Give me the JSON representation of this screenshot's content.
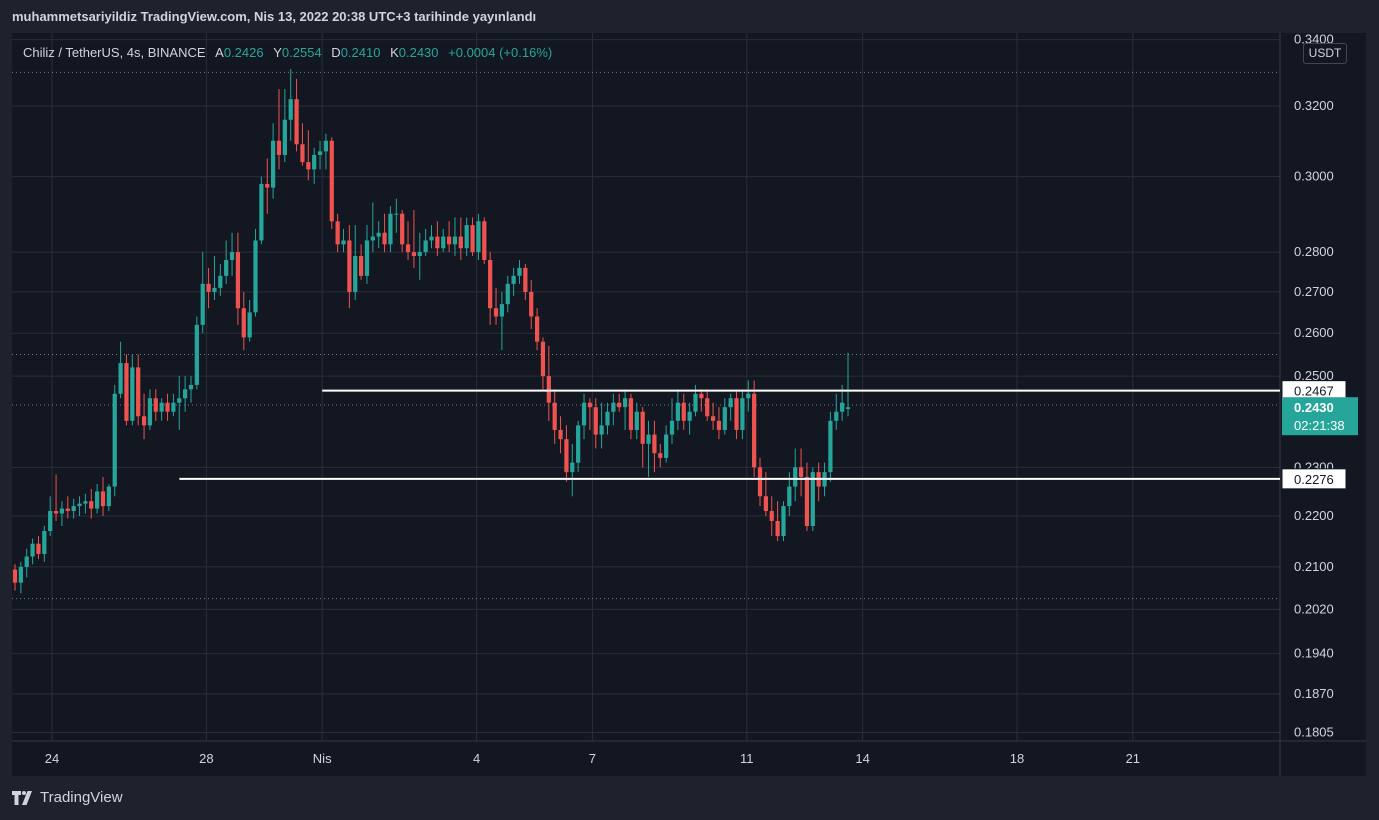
{
  "caption": "muhammetsariyildiz TradingView.com, Nis 13, 2022 20:38 UTC+3 tarihinde yayınlandı",
  "legend": {
    "symbol": "Chiliz / TetherUS, 4s, BINANCE",
    "open_label": "A",
    "open": "0.2426",
    "high_label": "Y",
    "high": "0.2554",
    "low_label": "D",
    "low": "0.2410",
    "close_label": "K",
    "close": "0.2430",
    "change": "+0.0004 (+0.16%)"
  },
  "unit": "USDT",
  "footer": {
    "brand": "TradingView",
    "logo_icon": "tradingview-logo-icon"
  },
  "colors": {
    "up": "#26a69a",
    "down": "#ef5350",
    "background": "#131722",
    "grid": "#2a2e39",
    "text": "#d1d4dc"
  },
  "chart_data": {
    "type": "candlestick",
    "scale": "log",
    "y_ticks": [
      "0.3400",
      "0.3200",
      "0.3000",
      "0.2800",
      "0.2700",
      "0.2600",
      "0.2500",
      "0.2300",
      "0.2200",
      "0.2100",
      "0.2020",
      "0.1940",
      "0.1870",
      "0.1805"
    ],
    "x_ticks": [
      {
        "label": "24",
        "day": 24
      },
      {
        "label": "28",
        "day": 28
      },
      {
        "label": "Nis",
        "day": 31
      },
      {
        "label": "4",
        "day": 35
      },
      {
        "label": "7",
        "day": 38
      },
      {
        "label": "11",
        "day": 42
      },
      {
        "label": "14",
        "day": 45
      },
      {
        "label": "18",
        "day": 49
      },
      {
        "label": "21",
        "day": 52
      }
    ],
    "horizontal_levels": [
      {
        "value": 0.2467,
        "label": "0.2467",
        "from_day": 31.0
      },
      {
        "value": 0.2276,
        "label": "0.2276",
        "from_day": 27.3
      }
    ],
    "dotted_levels": [
      0.33,
      0.255,
      0.2435,
      0.204
    ],
    "last_price": {
      "value": 0.243,
      "label": "0.2430",
      "countdown": "02:21:38"
    },
    "candles": [
      [
        0.2095,
        0.2105,
        0.2055,
        0.207
      ],
      [
        0.207,
        0.211,
        0.205,
        0.21
      ],
      [
        0.21,
        0.2135,
        0.208,
        0.212
      ],
      [
        0.212,
        0.2155,
        0.2105,
        0.2145
      ],
      [
        0.2145,
        0.216,
        0.2115,
        0.2125
      ],
      [
        0.2125,
        0.218,
        0.211,
        0.217
      ],
      [
        0.217,
        0.224,
        0.216,
        0.221
      ],
      [
        0.221,
        0.2285,
        0.219,
        0.2205
      ],
      [
        0.2205,
        0.223,
        0.218,
        0.2215
      ],
      [
        0.2215,
        0.224,
        0.2195,
        0.221
      ],
      [
        0.221,
        0.2235,
        0.2195,
        0.222
      ],
      [
        0.222,
        0.224,
        0.22,
        0.2225
      ],
      [
        0.2225,
        0.2245,
        0.2205,
        0.223
      ],
      [
        0.223,
        0.2255,
        0.2195,
        0.2215
      ],
      [
        0.2215,
        0.2265,
        0.2205,
        0.225
      ],
      [
        0.225,
        0.228,
        0.22,
        0.222
      ],
      [
        0.222,
        0.2265,
        0.221,
        0.226
      ],
      [
        0.226,
        0.248,
        0.224,
        0.246
      ],
      [
        0.246,
        0.258,
        0.245,
        0.253
      ],
      [
        0.253,
        0.255,
        0.239,
        0.24
      ],
      [
        0.24,
        0.255,
        0.239,
        0.252
      ],
      [
        0.252,
        0.255,
        0.239,
        0.241
      ],
      [
        0.241,
        0.246,
        0.236,
        0.239
      ],
      [
        0.239,
        0.247,
        0.238,
        0.245
      ],
      [
        0.245,
        0.247,
        0.24,
        0.242
      ],
      [
        0.242,
        0.245,
        0.24,
        0.244
      ],
      [
        0.244,
        0.246,
        0.24,
        0.242
      ],
      [
        0.242,
        0.246,
        0.241,
        0.244
      ],
      [
        0.244,
        0.25,
        0.238,
        0.245
      ],
      [
        0.245,
        0.25,
        0.242,
        0.247
      ],
      [
        0.247,
        0.25,
        0.244,
        0.248
      ],
      [
        0.248,
        0.264,
        0.247,
        0.262
      ],
      [
        0.262,
        0.28,
        0.26,
        0.272
      ],
      [
        0.272,
        0.276,
        0.266,
        0.27
      ],
      [
        0.27,
        0.279,
        0.268,
        0.271
      ],
      [
        0.271,
        0.277,
        0.269,
        0.274
      ],
      [
        0.274,
        0.283,
        0.272,
        0.278
      ],
      [
        0.278,
        0.285,
        0.274,
        0.28
      ],
      [
        0.28,
        0.285,
        0.262,
        0.266
      ],
      [
        0.266,
        0.27,
        0.256,
        0.259
      ],
      [
        0.259,
        0.268,
        0.258,
        0.265
      ],
      [
        0.265,
        0.286,
        0.264,
        0.283
      ],
      [
        0.283,
        0.3,
        0.282,
        0.298
      ],
      [
        0.298,
        0.305,
        0.29,
        0.297
      ],
      [
        0.297,
        0.315,
        0.294,
        0.31
      ],
      [
        0.31,
        0.325,
        0.302,
        0.306
      ],
      [
        0.306,
        0.325,
        0.304,
        0.316
      ],
      [
        0.316,
        0.331,
        0.31,
        0.322
      ],
      [
        0.322,
        0.328,
        0.307,
        0.309
      ],
      [
        0.309,
        0.315,
        0.303,
        0.304
      ],
      [
        0.304,
        0.313,
        0.299,
        0.302
      ],
      [
        0.302,
        0.308,
        0.298,
        0.306
      ],
      [
        0.306,
        0.31,
        0.302,
        0.307
      ],
      [
        0.307,
        0.312,
        0.302,
        0.31
      ],
      [
        0.31,
        0.311,
        0.286,
        0.288
      ],
      [
        0.288,
        0.29,
        0.28,
        0.282
      ],
      [
        0.282,
        0.286,
        0.28,
        0.283
      ],
      [
        0.283,
        0.287,
        0.266,
        0.27
      ],
      [
        0.27,
        0.287,
        0.268,
        0.279
      ],
      [
        0.279,
        0.282,
        0.273,
        0.274
      ],
      [
        0.274,
        0.287,
        0.272,
        0.283
      ],
      [
        0.283,
        0.293,
        0.28,
        0.284
      ],
      [
        0.284,
        0.288,
        0.281,
        0.285
      ],
      [
        0.285,
        0.29,
        0.28,
        0.282
      ],
      [
        0.282,
        0.292,
        0.28,
        0.29
      ],
      [
        0.29,
        0.294,
        0.285,
        0.29
      ],
      [
        0.29,
        0.291,
        0.28,
        0.282
      ],
      [
        0.282,
        0.288,
        0.278,
        0.28
      ],
      [
        0.28,
        0.291,
        0.276,
        0.279
      ],
      [
        0.279,
        0.285,
        0.273,
        0.28
      ],
      [
        0.28,
        0.286,
        0.279,
        0.283
      ],
      [
        0.283,
        0.287,
        0.281,
        0.284
      ],
      [
        0.284,
        0.288,
        0.279,
        0.281
      ],
      [
        0.281,
        0.286,
        0.28,
        0.284
      ],
      [
        0.284,
        0.288,
        0.28,
        0.282
      ],
      [
        0.282,
        0.289,
        0.279,
        0.284
      ],
      [
        0.284,
        0.289,
        0.278,
        0.281
      ],
      [
        0.281,
        0.289,
        0.279,
        0.287
      ],
      [
        0.287,
        0.289,
        0.279,
        0.28
      ],
      [
        0.28,
        0.29,
        0.278,
        0.288
      ],
      [
        0.288,
        0.289,
        0.277,
        0.278
      ],
      [
        0.278,
        0.28,
        0.262,
        0.266
      ],
      [
        0.266,
        0.271,
        0.262,
        0.264
      ],
      [
        0.264,
        0.27,
        0.256,
        0.267
      ],
      [
        0.267,
        0.274,
        0.265,
        0.272
      ],
      [
        0.272,
        0.276,
        0.269,
        0.274
      ],
      [
        0.274,
        0.278,
        0.272,
        0.276
      ],
      [
        0.276,
        0.277,
        0.268,
        0.27
      ],
      [
        0.27,
        0.273,
        0.261,
        0.264
      ],
      [
        0.264,
        0.266,
        0.256,
        0.258
      ],
      [
        0.258,
        0.259,
        0.247,
        0.25
      ],
      [
        0.25,
        0.257,
        0.24,
        0.244
      ],
      [
        0.244,
        0.247,
        0.235,
        0.238
      ],
      [
        0.238,
        0.241,
        0.233,
        0.236
      ],
      [
        0.236,
        0.239,
        0.227,
        0.229
      ],
      [
        0.229,
        0.235,
        0.224,
        0.231
      ],
      [
        0.231,
        0.24,
        0.229,
        0.239
      ],
      [
        0.239,
        0.246,
        0.236,
        0.244
      ],
      [
        0.244,
        0.245,
        0.238,
        0.243
      ],
      [
        0.243,
        0.245,
        0.234,
        0.237
      ],
      [
        0.237,
        0.244,
        0.234,
        0.239
      ],
      [
        0.239,
        0.244,
        0.237,
        0.242
      ],
      [
        0.242,
        0.246,
        0.239,
        0.244
      ],
      [
        0.244,
        0.246,
        0.242,
        0.243
      ],
      [
        0.243,
        0.247,
        0.238,
        0.245
      ],
      [
        0.245,
        0.246,
        0.236,
        0.238
      ],
      [
        0.238,
        0.244,
        0.236,
        0.242
      ],
      [
        0.242,
        0.243,
        0.23,
        0.235
      ],
      [
        0.235,
        0.24,
        0.228,
        0.237
      ],
      [
        0.237,
        0.24,
        0.229,
        0.233
      ],
      [
        0.233,
        0.235,
        0.23,
        0.232
      ],
      [
        0.232,
        0.239,
        0.231,
        0.237
      ],
      [
        0.237,
        0.245,
        0.235,
        0.24
      ],
      [
        0.24,
        0.247,
        0.238,
        0.244
      ],
      [
        0.244,
        0.246,
        0.238,
        0.24
      ],
      [
        0.24,
        0.244,
        0.237,
        0.242
      ],
      [
        0.242,
        0.248,
        0.241,
        0.246
      ],
      [
        0.246,
        0.247,
        0.242,
        0.245
      ],
      [
        0.245,
        0.247,
        0.24,
        0.241
      ],
      [
        0.241,
        0.244,
        0.238,
        0.24
      ],
      [
        0.24,
        0.243,
        0.236,
        0.238
      ],
      [
        0.238,
        0.245,
        0.237,
        0.243
      ],
      [
        0.243,
        0.246,
        0.24,
        0.245
      ],
      [
        0.245,
        0.247,
        0.236,
        0.238
      ],
      [
        0.238,
        0.247,
        0.236,
        0.245
      ],
      [
        0.245,
        0.249,
        0.242,
        0.246
      ],
      [
        0.246,
        0.249,
        0.228,
        0.23
      ],
      [
        0.23,
        0.232,
        0.222,
        0.224
      ],
      [
        0.224,
        0.229,
        0.22,
        0.221
      ],
      [
        0.221,
        0.224,
        0.216,
        0.219
      ],
      [
        0.219,
        0.223,
        0.215,
        0.216
      ],
      [
        0.216,
        0.223,
        0.215,
        0.222
      ],
      [
        0.222,
        0.229,
        0.22,
        0.226
      ],
      [
        0.226,
        0.234,
        0.223,
        0.23
      ],
      [
        0.23,
        0.234,
        0.224,
        0.228
      ],
      [
        0.228,
        0.231,
        0.217,
        0.218
      ],
      [
        0.218,
        0.23,
        0.217,
        0.229
      ],
      [
        0.229,
        0.231,
        0.223,
        0.226
      ],
      [
        0.226,
        0.231,
        0.224,
        0.229
      ],
      [
        0.229,
        0.242,
        0.227,
        0.24
      ],
      [
        0.24,
        0.246,
        0.238,
        0.242
      ],
      [
        0.242,
        0.248,
        0.24,
        0.244
      ],
      [
        0.2426,
        0.2554,
        0.241,
        0.243
      ]
    ]
  }
}
